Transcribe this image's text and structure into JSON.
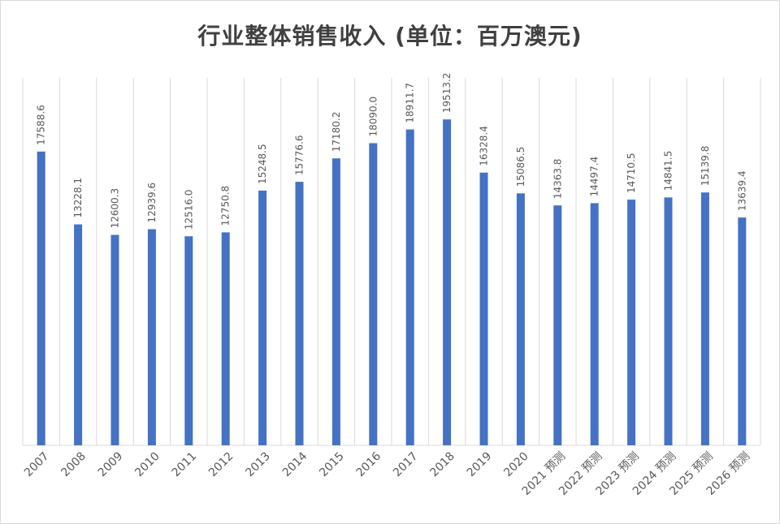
{
  "chart_data": {
    "type": "bar",
    "title": "行业整体销售收入 (单位：百万澳元)",
    "xlabel": "",
    "ylabel": "",
    "categories": [
      "2007",
      "2008",
      "2009",
      "2010",
      "2011",
      "2012",
      "2013",
      "2014",
      "2015",
      "2016",
      "2017",
      "2018",
      "2019",
      "2020",
      "2021 预测",
      "2022 预测",
      "2023 预测",
      "2024 预测",
      "2025 预测",
      "2026 预测"
    ],
    "values": [
      17588.6,
      13228.1,
      12600.3,
      12939.6,
      12516.0,
      12750.8,
      15248.5,
      15776.6,
      17180.2,
      18090.0,
      18911.7,
      19513.2,
      16328.4,
      15086.5,
      14363.8,
      14497.4,
      14710.5,
      14841.5,
      15139.8,
      13639.4
    ],
    "value_labels": [
      "17588.6",
      "13228.1",
      "12600.3",
      "12939.6",
      "12516.0",
      "12750.8",
      "15248.5",
      "15776.6",
      "17180.2",
      "18090.0",
      "18911.7",
      "19513.2",
      "16328.4",
      "15086.5",
      "14363.8",
      "14497.4",
      "14710.5",
      "14841.5",
      "15139.8",
      "13639.4"
    ],
    "ylim": [
      0,
      22000
    ],
    "grid": "vertical",
    "legend": "none",
    "colors": {
      "bar": "#4472c4",
      "grid": "#d9d9d9",
      "text": "#595959",
      "title": "#404040"
    }
  }
}
